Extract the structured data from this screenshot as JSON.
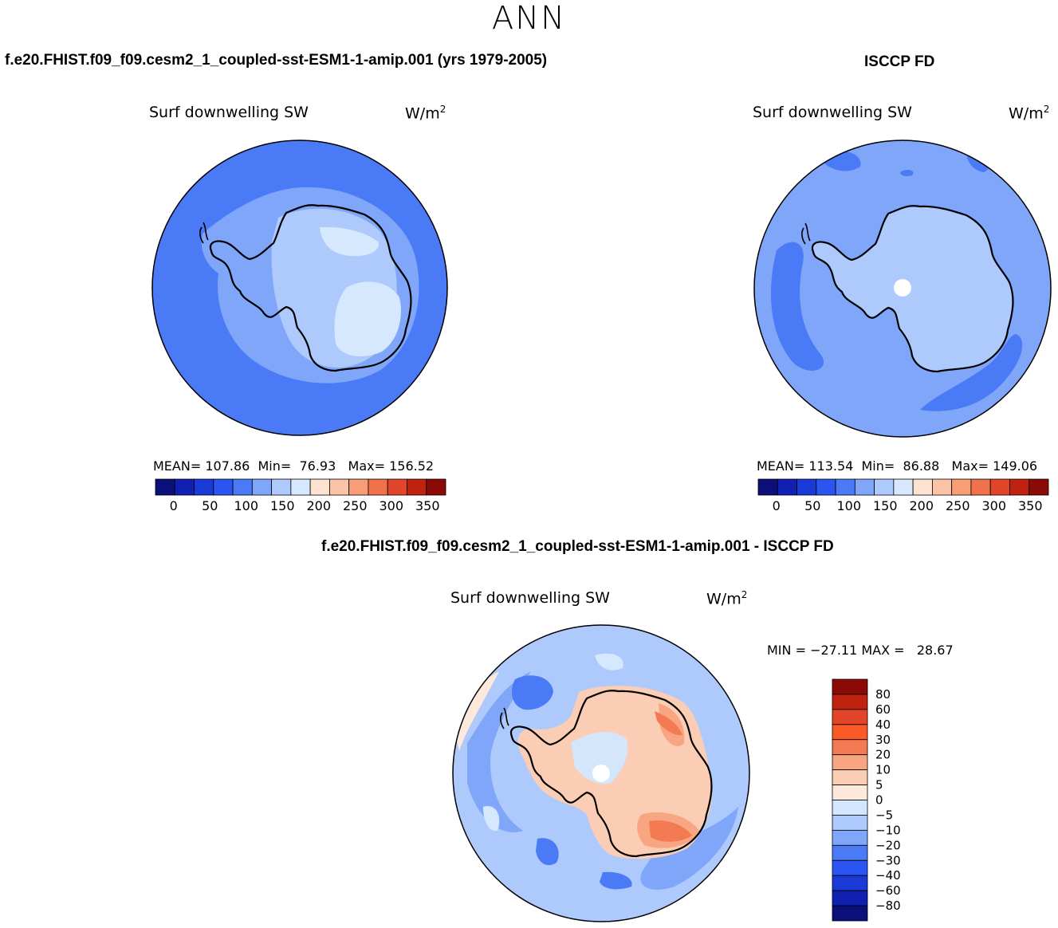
{
  "season": "ANN",
  "chart_data": [
    {
      "type": "heatmap",
      "projection": "south polar stereographic",
      "case": "f.e20.FHIST.f09_f09.cesm2_1_coupled-sst-ESM1-1-amip.001 (yrs 1979-2005)",
      "title": "Surf downwelling SW",
      "units_base": "W/m",
      "units_exp": "2",
      "stats": {
        "mean_label": "MEAN=",
        "mean": "107.86",
        "min_label": "Min=",
        "min": "76.93",
        "max_label": "Max=",
        "max": "156.52"
      },
      "colorbar_ticks": [
        "0",
        "50",
        "100",
        "150",
        "200",
        "250",
        "300",
        "350"
      ],
      "colorbar_range": [
        -25,
        375
      ],
      "colorbar_colors": [
        "#0a0f7a",
        "#1020b0",
        "#1a3ad8",
        "#2a55f0",
        "#4a7af5",
        "#7fa6f8",
        "#aec9fb",
        "#d6e8fd",
        "#fde2d2",
        "#fbc4a6",
        "#f79e76",
        "#f0724a",
        "#e2462a",
        "#c02210",
        "#8c0a05"
      ]
    },
    {
      "type": "heatmap",
      "projection": "south polar stereographic",
      "case": "ISCCP FD",
      "title": "Surf downwelling SW",
      "units_base": "W/m",
      "units_exp": "2",
      "stats": {
        "mean_label": "MEAN=",
        "mean": "113.54",
        "min_label": "Min=",
        "min": "86.88",
        "max_label": "Max=",
        "max": "149.06"
      },
      "colorbar_ticks": [
        "0",
        "50",
        "100",
        "150",
        "200",
        "250",
        "300",
        "350"
      ],
      "colorbar_range": [
        -25,
        375
      ]
    },
    {
      "type": "heatmap",
      "projection": "south polar stereographic",
      "case": "f.e20.FHIST.f09_f09.cesm2_1_coupled-sst-ESM1-1-amip.001 - ISCCP FD",
      "title": "Surf downwelling SW",
      "units_base": "W/m",
      "units_exp": "2",
      "stats_text": "MIN = −27.11 MAX =   28.67",
      "colorbar_labels": [
        "80",
        "60",
        "40",
        "30",
        "20",
        "10",
        "5",
        "0",
        "−5",
        "−10",
        "−20",
        "−30",
        "−40",
        "−60",
        "−80"
      ],
      "colorbar_colors": [
        "#8c0a05",
        "#c02210",
        "#e2462a",
        "#fa5a26",
        "#f37a52",
        "#f8a681",
        "#fbcdb4",
        "#fde8dc",
        "#d4e6fc",
        "#aec9fb",
        "#7fa6f8",
        "#4a7af5",
        "#2a55f0",
        "#1a3ad8",
        "#1020b0",
        "#0a0f7a"
      ]
    }
  ]
}
